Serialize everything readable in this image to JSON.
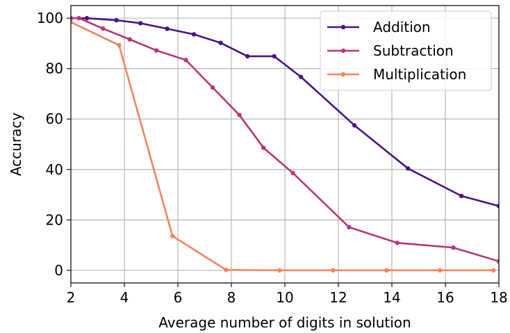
{
  "chart_data": {
    "type": "line",
    "title": "",
    "xlabel": "Average number of digits in solution",
    "ylabel": "Accuracy",
    "xlim": [
      2,
      18
    ],
    "ylim": [
      -5,
      105
    ],
    "xticks": [
      2,
      4,
      6,
      8,
      10,
      12,
      14,
      16,
      18
    ],
    "yticks": [
      0,
      20,
      40,
      60,
      80,
      100
    ],
    "xtick_labels": [
      "2",
      "4",
      "6",
      "8",
      "10",
      "12",
      "14",
      "16",
      "18"
    ],
    "ytick_labels": [
      "0",
      "20",
      "40",
      "60",
      "80",
      "100"
    ],
    "grid": true,
    "legend_position": "top-right",
    "series": [
      {
        "name": "Addition",
        "color": "#4a1486",
        "points": [
          [
            2.0,
            100.0
          ],
          [
            2.6,
            100.0
          ],
          [
            3.7,
            99.2
          ],
          [
            4.6,
            98.0
          ],
          [
            5.6,
            95.8
          ],
          [
            6.6,
            93.6
          ],
          [
            7.6,
            90.2
          ],
          [
            8.6,
            84.9
          ],
          [
            9.6,
            84.9
          ],
          [
            10.6,
            76.7
          ],
          [
            12.6,
            57.5
          ],
          [
            14.6,
            40.4
          ],
          [
            16.6,
            29.5
          ],
          [
            18.0,
            25.5
          ]
        ]
      },
      {
        "name": "Subtraction",
        "color": "#b73779",
        "points": [
          [
            2.0,
            100.0
          ],
          [
            2.3,
            100.0
          ],
          [
            3.2,
            95.9
          ],
          [
            4.2,
            91.6
          ],
          [
            5.2,
            87.2
          ],
          [
            6.3,
            83.4
          ],
          [
            7.3,
            72.5
          ],
          [
            8.3,
            61.6
          ],
          [
            9.2,
            48.6
          ],
          [
            10.3,
            38.6
          ],
          [
            12.4,
            17.1
          ],
          [
            14.2,
            10.9
          ],
          [
            16.3,
            9.0
          ],
          [
            18.0,
            3.6
          ]
        ]
      },
      {
        "name": "Multiplication",
        "color": "#f4845f",
        "points": [
          [
            2.0,
            98.4
          ],
          [
            3.8,
            89.3
          ],
          [
            5.8,
            13.6
          ],
          [
            7.8,
            0.2
          ],
          [
            9.8,
            0.0
          ],
          [
            11.8,
            0.0
          ],
          [
            13.8,
            0.0
          ],
          [
            15.8,
            0.0
          ],
          [
            17.8,
            0.0
          ]
        ]
      }
    ]
  }
}
